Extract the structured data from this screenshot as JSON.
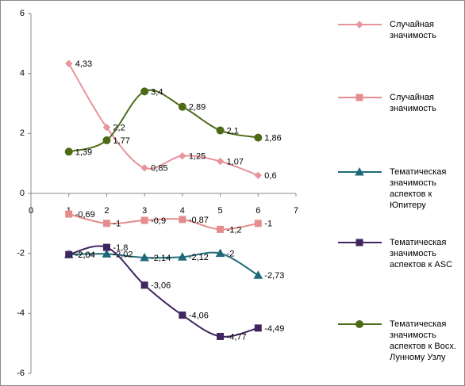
{
  "chart_data": {
    "type": "line",
    "smooth": true,
    "x": [
      1,
      2,
      3,
      4,
      5,
      6
    ],
    "xlim": [
      0,
      7
    ],
    "xticks": [
      0,
      1,
      2,
      3,
      4,
      5,
      6,
      7
    ],
    "ylim": [
      -6,
      6
    ],
    "yticks": [
      -6,
      -4,
      -2,
      0,
      2,
      4,
      6
    ],
    "series": [
      {
        "name": "Случайная значимость",
        "color": "#e8949c",
        "marker": "diamond",
        "values": [
          4.33,
          2.2,
          0.85,
          1.25,
          1.07,
          0.6
        ],
        "value_labels": [
          "4,33",
          "2,2",
          "0,85",
          "1,25",
          "1,07",
          "0,6"
        ]
      },
      {
        "name": "Случайная значимость",
        "color": "#e58c8c",
        "marker": "square",
        "values": [
          -0.69,
          -1,
          -0.9,
          -0.87,
          -1.2,
          -1
        ],
        "value_labels": [
          "-0,69",
          "-1",
          "-0,9",
          "-0,87",
          "-1,2",
          "-1"
        ]
      },
      {
        "name": "Тематическая значимость аспектов к Юпитеру",
        "color": "#1f6b78",
        "marker": "triangle",
        "values": [
          -2.04,
          -2.02,
          -2.14,
          -2.12,
          -2,
          -2.73
        ],
        "value_labels": [
          "-2,04",
          "-2,02",
          "-2,14",
          "-2,12",
          "-2",
          "-2,73"
        ]
      },
      {
        "name": "Тематическая значимость аспектов к ASC",
        "color": "#40255f",
        "marker": "square",
        "values": [
          -2.04,
          -1.8,
          -3.06,
          -4.06,
          -4.77,
          -4.49
        ],
        "value_labels": [
          "-2,04",
          "-1,8",
          "-3,06",
          "-4,06",
          "-4,77",
          "-4,49"
        ]
      },
      {
        "name": "Тематическая значимость аспектов к Восх. Лунному Узлу",
        "color": "#4d6b16",
        "marker": "circle",
        "values": [
          1.39,
          1.77,
          3.4,
          2.89,
          2.1,
          1.86
        ],
        "value_labels": [
          "1,39",
          "1,77",
          "3,4",
          "2,89",
          "2,1",
          "1,86"
        ]
      }
    ]
  }
}
